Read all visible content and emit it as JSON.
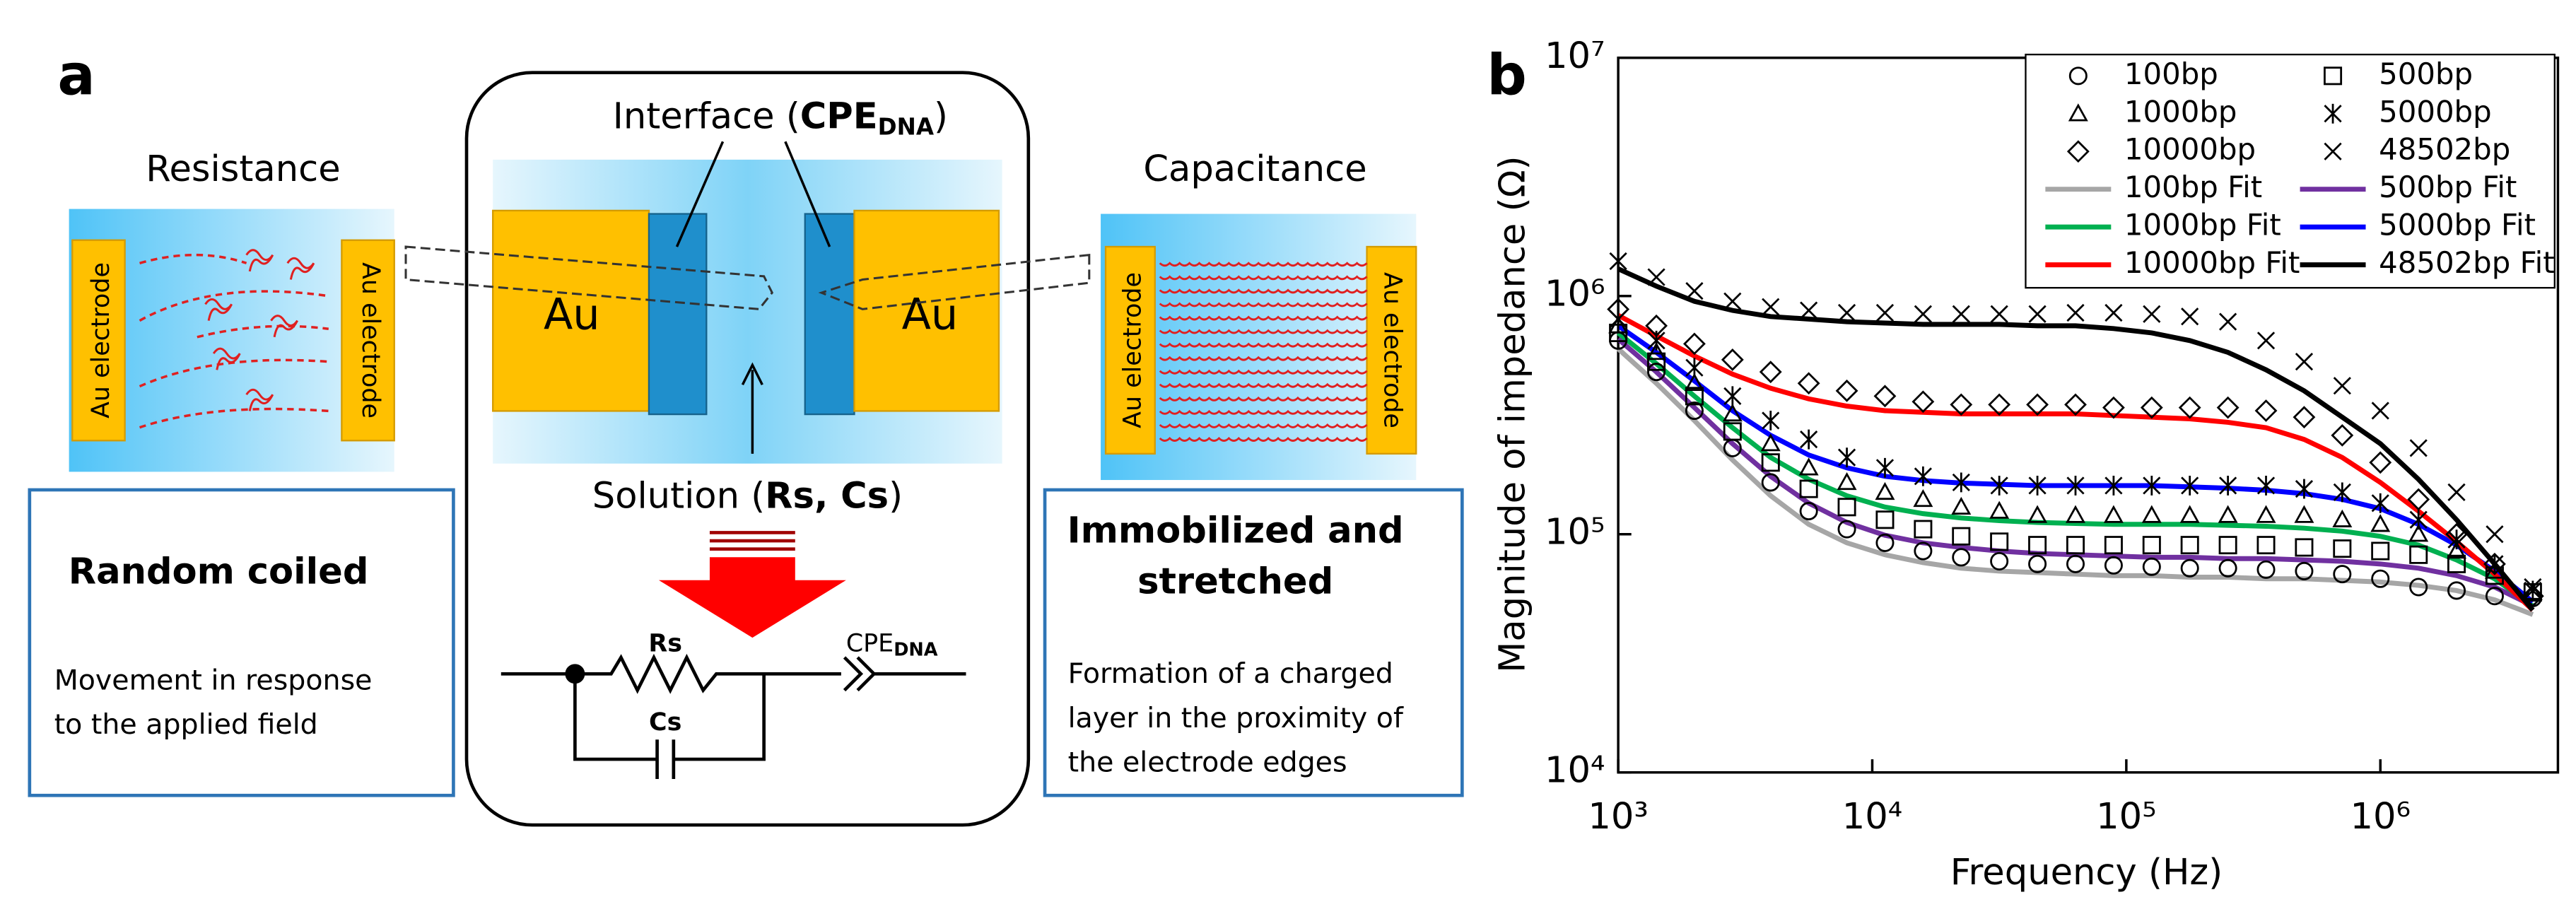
{
  "panel_a": {
    "label": "a",
    "left": {
      "title": "Resistance",
      "electrodes": [
        "Au electrode",
        "Au electrode"
      ],
      "box_title": "Random coiled",
      "box_text": [
        "Movement in response",
        "to the applied field"
      ]
    },
    "center": {
      "interface": {
        "text": "Interface (",
        "bold": "CPE",
        "sub": "DNA",
        "close": ")"
      },
      "electrodes": [
        "Au",
        "Au"
      ],
      "solution": {
        "text": "Solution (",
        "bold": "Rs, Cs",
        "close": ")"
      },
      "circuit": {
        "rs": "Rs",
        "cs": "Cs",
        "cpe": "CPE",
        "cpe_sub": "DNA"
      }
    },
    "right": {
      "title": "Capacitance",
      "electrodes": [
        "Au electrode",
        "Au electrode"
      ],
      "box_title": [
        "Immobilized and",
        "stretched"
      ],
      "box_text": [
        "Formation of a charged",
        "layer in the proximity of",
        "the electrode edges"
      ]
    }
  },
  "chart_data": {
    "type": "scatter",
    "label": "b",
    "xlabel": "Frequency (Hz)",
    "ylabel": "Magnitude of impedance (Ω)",
    "xscale": "log",
    "yscale": "log",
    "legend": "upper right",
    "xlim": [
      1000,
      5000000
    ],
    "ylim": [
      10000,
      10000000
    ],
    "xticks": [
      {
        "value": 1000,
        "label": "10³"
      },
      {
        "value": 10000,
        "label": "10⁴"
      },
      {
        "value": 100000,
        "label": "10⁵"
      },
      {
        "value": 1000000,
        "label": "10⁶"
      }
    ],
    "yticks": [
      {
        "value": 10000,
        "label": "10⁴"
      },
      {
        "value": 100000,
        "label": "10⁵"
      },
      {
        "value": 1000000,
        "label": "10⁶"
      },
      {
        "value": 10000000,
        "label": "10⁷"
      }
    ],
    "x": [
      1000,
      1413,
      1995,
      2818,
      3981,
      5623,
      7943,
      11220,
      15850,
      22390,
      31620,
      44670,
      63100,
      89130,
      125900,
      177800,
      251200,
      354800,
      501200,
      707900,
      1000000,
      1413000,
      1995000,
      2818000,
      3981000
    ],
    "series": [
      {
        "name": "100bp",
        "marker": "circle",
        "color": "#000000",
        "values": [
          650000,
          480000,
          330000,
          230000,
          165000,
          125000,
          105000,
          92000,
          85000,
          80000,
          77000,
          75000,
          75000,
          74000,
          73000,
          72000,
          72000,
          71000,
          70000,
          68000,
          65000,
          60000,
          58000,
          55000,
          54000
        ]
      },
      {
        "name": "500bp",
        "marker": "square",
        "color": "#000000",
        "values": [
          700000,
          530000,
          380000,
          270000,
          200000,
          155000,
          130000,
          115000,
          105000,
          98000,
          93000,
          90000,
          90000,
          90000,
          90000,
          90000,
          90000,
          90000,
          88000,
          87000,
          85000,
          82000,
          75000,
          67000,
          57000
        ]
      },
      {
        "name": "1000bp",
        "marker": "triangle",
        "color": "#000000",
        "values": [
          750000,
          580000,
          430000,
          320000,
          240000,
          190000,
          165000,
          150000,
          140000,
          130000,
          125000,
          120000,
          120000,
          120000,
          120000,
          120000,
          120000,
          120000,
          120000,
          115000,
          110000,
          100000,
          85000,
          70000,
          57000
        ]
      },
      {
        "name": "5000bp",
        "marker": "asterisk",
        "color": "#000000",
        "values": [
          800000,
          650000,
          500000,
          380000,
          300000,
          250000,
          210000,
          190000,
          175000,
          165000,
          160000,
          160000,
          160000,
          160000,
          160000,
          160000,
          160000,
          160000,
          155000,
          150000,
          135000,
          115000,
          95000,
          75000,
          58000
        ]
      },
      {
        "name": "10000bp",
        "marker": "diamond",
        "color": "#000000",
        "values": [
          880000,
          750000,
          630000,
          540000,
          480000,
          430000,
          400000,
          380000,
          360000,
          350000,
          350000,
          350000,
          350000,
          340000,
          340000,
          340000,
          340000,
          330000,
          310000,
          260000,
          200000,
          140000,
          100000,
          75000,
          55000
        ]
      },
      {
        "name": "48502bp",
        "marker": "x",
        "color": "#000000",
        "values": [
          1400000,
          1200000,
          1050000,
          950000,
          900000,
          870000,
          850000,
          850000,
          840000,
          840000,
          840000,
          840000,
          850000,
          850000,
          840000,
          820000,
          780000,
          650000,
          530000,
          420000,
          330000,
          230000,
          150000,
          100000,
          60000
        ]
      },
      {
        "name": "100bp Fit",
        "color": "#a6a6a6",
        "values": [
          600000,
          430000,
          300000,
          205000,
          145000,
          110000,
          92000,
          82000,
          76000,
          72000,
          70000,
          69000,
          68000,
          67000,
          67000,
          66000,
          66000,
          65000,
          65000,
          64000,
          63000,
          61000,
          58000,
          53000,
          46000
        ]
      },
      {
        "name": "500bp Fit",
        "color": "#7030a0",
        "values": [
          660000,
          480000,
          340000,
          240000,
          175000,
          135000,
          112000,
          99000,
          92000,
          88000,
          85000,
          83000,
          82000,
          81000,
          80000,
          80000,
          79000,
          79000,
          78000,
          77000,
          75000,
          72000,
          67000,
          60000,
          50000
        ]
      },
      {
        "name": "1000bp Fit",
        "color": "#00b050",
        "values": [
          700000,
          520000,
          380000,
          280000,
          210000,
          170000,
          145000,
          130000,
          122000,
          117000,
          114000,
          112000,
          111000,
          110000,
          110000,
          110000,
          109000,
          108000,
          106000,
          103000,
          98000,
          90000,
          78000,
          65000,
          50000
        ]
      },
      {
        "name": "5000bp Fit",
        "color": "#0000ff",
        "values": [
          750000,
          580000,
          440000,
          330000,
          260000,
          215000,
          190000,
          175000,
          168000,
          164000,
          162000,
          160000,
          160000,
          160000,
          160000,
          158000,
          156000,
          153000,
          148000,
          140000,
          128000,
          110000,
          90000,
          70000,
          52000
        ]
      },
      {
        "name": "10000bp Fit",
        "color": "#ff0000",
        "values": [
          830000,
          680000,
          560000,
          470000,
          410000,
          370000,
          345000,
          330000,
          325000,
          320000,
          320000,
          320000,
          320000,
          315000,
          310000,
          305000,
          295000,
          280000,
          250000,
          210000,
          165000,
          125000,
          93000,
          68000,
          48000
        ]
      },
      {
        "name": "48502bp Fit",
        "color": "#000000",
        "values": [
          1300000,
          1100000,
          950000,
          870000,
          820000,
          800000,
          780000,
          770000,
          760000,
          760000,
          760000,
          750000,
          750000,
          730000,
          700000,
          650000,
          580000,
          490000,
          400000,
          310000,
          240000,
          170000,
          115000,
          75000,
          48000
        ]
      }
    ]
  }
}
